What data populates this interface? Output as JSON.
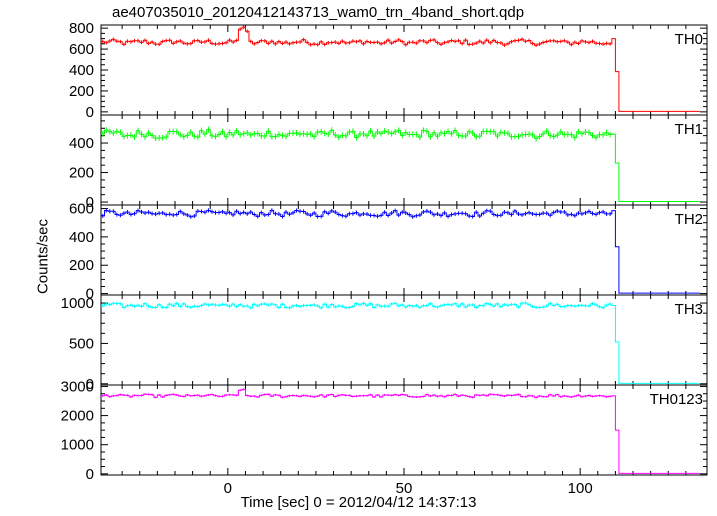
{
  "chart_data": {
    "type": "line",
    "title": "ae407035010_20120412143713_wam0_trn_4band_short.qdp",
    "xlabel": "Time [sec] 0 = 2012/04/12 14:37:13",
    "ylabel": "Counts/sec",
    "xlim": [
      -36,
      136
    ],
    "x_ticks": [
      0,
      50,
      100
    ],
    "step_width": 1,
    "burst_end": 110,
    "grid": false,
    "legend": "none",
    "panels": [
      {
        "name": "TH0",
        "color": "#ff0000",
        "ylim": [
          -30,
          830
        ],
        "yticks": [
          0,
          200,
          400,
          600,
          800
        ],
        "segments": [
          {
            "x_start": -36,
            "x_end": 109,
            "level": 665,
            "noise": 22,
            "spikes": [
              [
                3,
                790
              ],
              [
                4,
                810
              ],
              [
                5,
                770
              ]
            ]
          },
          {
            "x_start": 109,
            "x_end": 110,
            "level": 700
          },
          {
            "x_start": 110,
            "x_end": 111,
            "level": 385
          },
          {
            "x_start": 111,
            "x_end": 134,
            "level": 5
          }
        ]
      },
      {
        "name": "TH1",
        "color": "#00ff00",
        "ylim": [
          -20,
          590
        ],
        "yticks": [
          0,
          200,
          400
        ],
        "segments": [
          {
            "x_start": -36,
            "x_end": 109,
            "level": 460,
            "noise": 25,
            "spikes": []
          },
          {
            "x_start": 109,
            "x_end": 110,
            "level": 460
          },
          {
            "x_start": 110,
            "x_end": 111,
            "level": 265
          },
          {
            "x_start": 111,
            "x_end": 134,
            "level": 4
          }
        ]
      },
      {
        "name": "TH2",
        "color": "#0000ff",
        "ylim": [
          -10,
          625
        ],
        "yticks": [
          0,
          200,
          400,
          600
        ],
        "segments": [
          {
            "x_start": -36,
            "x_end": 109,
            "level": 565,
            "noise": 18,
            "spikes": []
          },
          {
            "x_start": 109,
            "x_end": 110,
            "level": 585
          },
          {
            "x_start": 110,
            "x_end": 111,
            "level": 330
          },
          {
            "x_start": 111,
            "x_end": 134,
            "level": 3
          }
        ]
      },
      {
        "name": "TH3",
        "color": "#00ffff",
        "ylim": [
          -15,
          1100
        ],
        "yticks": [
          0,
          500,
          1000
        ],
        "segments": [
          {
            "x_start": -36,
            "x_end": 109,
            "level": 970,
            "noise": 25,
            "spikes": []
          },
          {
            "x_start": 109,
            "x_end": 110,
            "level": 970
          },
          {
            "x_start": 110,
            "x_end": 111,
            "level": 520
          },
          {
            "x_start": 111,
            "x_end": 134,
            "level": 5
          }
        ]
      },
      {
        "name": "TH0123",
        "color": "#ff00ff",
        "ylim": [
          -40,
          3050
        ],
        "yticks": [
          0,
          1000,
          2000,
          3000
        ],
        "segments": [
          {
            "x_start": -36,
            "x_end": 109,
            "level": 2680,
            "noise": 45,
            "spikes": [
              [
                3,
                2870
              ],
              [
                4,
                2900
              ]
            ]
          },
          {
            "x_start": 109,
            "x_end": 110,
            "level": 2680
          },
          {
            "x_start": 110,
            "x_end": 111,
            "level": 1500
          },
          {
            "x_start": 111,
            "x_end": 134,
            "level": 15
          }
        ]
      }
    ]
  }
}
